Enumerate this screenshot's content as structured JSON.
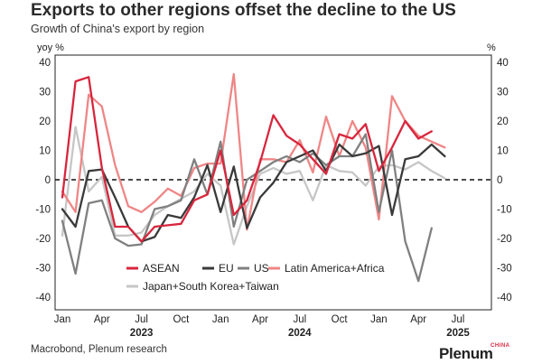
{
  "title": "Exports to other regions offset the decline to the US",
  "subtitle": "Growth of China's export by region",
  "source": "Macrobond, Plenum research",
  "brand": {
    "name": "Plenum",
    "tag": "CHINA"
  },
  "chart_data": {
    "type": "line",
    "ylabel_left": "yoy %",
    "ylabel_right": "%",
    "ylim": [
      -40,
      40
    ],
    "yticks": [
      -40,
      -30,
      -20,
      -10,
      0,
      10,
      20,
      30,
      40
    ],
    "x_tick_labels": [
      "Jan",
      "Apr",
      "Jul",
      "Oct",
      "Jan",
      "Apr",
      "Jul",
      "Oct",
      "Jan",
      "Apr",
      "Jul"
    ],
    "year_labels": [
      "2023",
      "2024",
      "2025"
    ],
    "zero_line": "dashed",
    "legend": [
      "ASEAN",
      "EU",
      "US",
      "Latin America+Africa",
      "Japan+South Korea+Taiwan"
    ],
    "x": [
      "2023-01",
      "2023-02",
      "2023-03",
      "2023-04",
      "2023-05",
      "2023-06",
      "2023-07",
      "2023-08",
      "2023-09",
      "2023-10",
      "2023-11",
      "2023-12",
      "2024-01",
      "2024-02",
      "2024-03",
      "2024-04",
      "2024-05",
      "2024-06",
      "2024-07",
      "2024-08",
      "2024-09",
      "2024-10",
      "2024-11",
      "2024-12",
      "2025-01",
      "2025-02",
      "2025-03",
      "2025-04",
      "2025-05",
      "2025-06"
    ],
    "series": [
      {
        "name": "ASEAN",
        "color": "#d7263d",
        "width": 2.3,
        "values": [
          -6,
          33.5,
          35,
          4,
          -16,
          -16,
          -21,
          -16,
          -15.5,
          -15,
          -7,
          -5,
          10,
          -12,
          -7,
          6,
          22,
          15,
          12,
          7,
          2,
          15.5,
          14,
          19,
          3,
          11,
          20,
          14,
          16.5,
          null
        ]
      },
      {
        "name": "EU",
        "color": "#3a3a3a",
        "width": 2.3,
        "values": [
          -10,
          -16,
          3,
          3.5,
          -6,
          -16,
          -21,
          -19.5,
          -12,
          -13,
          -6,
          5,
          -11,
          4.5,
          -16.5,
          -6,
          -1,
          6,
          8,
          10,
          3,
          12,
          8,
          9,
          11.5,
          -12,
          7,
          8,
          12,
          8
        ]
      },
      {
        "name": "US",
        "color": "#808080",
        "width": 2.3,
        "values": [
          -14,
          -32,
          -8,
          -7,
          -20,
          -22.5,
          -22,
          -10,
          -9,
          -7,
          7,
          -5,
          13,
          -16,
          0,
          3,
          6,
          8,
          6,
          9,
          5,
          8,
          8,
          15.5,
          -11,
          10,
          -21,
          -34.5,
          -16.5,
          null
        ]
      },
      {
        "name": "Latin America+Africa",
        "color": "#ef8686",
        "width": 2.3,
        "values": [
          -4,
          -11,
          29,
          25,
          5,
          -9,
          -11,
          -7.5,
          -3,
          -5.5,
          4,
          5.5,
          5.5,
          36,
          -17,
          7,
          7,
          6,
          13.5,
          2.5,
          21.5,
          8,
          20,
          11,
          -13.5,
          28.5,
          20,
          15,
          13,
          11
        ]
      },
      {
        "name": "Japan+South Korea+Taiwan",
        "color": "#c6c6c6",
        "width": 2.3,
        "values": [
          -19,
          18,
          -4,
          1,
          -19,
          -19,
          -18,
          -12,
          -9,
          -6.5,
          -4,
          2,
          -2,
          -22,
          -9,
          2,
          4,
          2,
          3,
          -7,
          5,
          3,
          2.5,
          -2,
          4.5,
          5,
          3.5,
          6,
          3,
          0.5
        ]
      }
    ]
  }
}
